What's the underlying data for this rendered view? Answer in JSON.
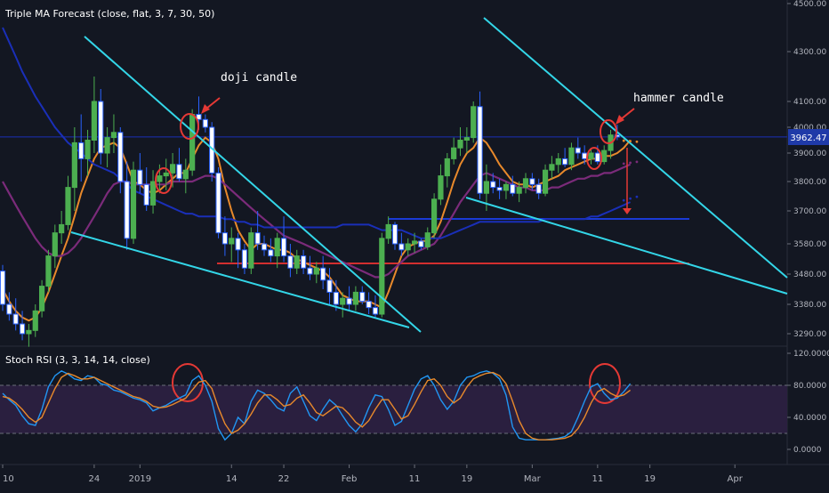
{
  "colors": {
    "background": "#131722",
    "text": "#b2b5be",
    "grid": "#1e2230",
    "candle_up": "#4caf50",
    "candle_down": "#ffffff",
    "candle_down_border": "#2962ff",
    "ma_fast": "#e8892b",
    "ma_mid": "#7b2b7a",
    "ma_slow": "#1a2fb8",
    "trendline": "#33d6e8",
    "circle": "#e53935",
    "hline_blue": "#1a3ad6",
    "hline_red": "#d32f2f",
    "rsi_k": "#2196f3",
    "rsi_d": "#e8892b",
    "rsi_band": "#2a1f3f",
    "price_label_bg": "#1f3aa8"
  },
  "main_legend": "Triple MA Forecast (close, flat, 3, 7, 30, 50)",
  "rsi_legend": "Stoch RSI (3, 3, 14, 14, close)",
  "annotations": {
    "doji": "doji candle",
    "hammer": "hammer candle"
  },
  "last_price_label": "3962.47",
  "chart_data": [
    {
      "type": "candlestick",
      "title": "",
      "y_axis_ticks": [
        "4500.00",
        "4300.00",
        "4100.00",
        "4000.00",
        "3900.00",
        "3800.00",
        "3700.00",
        "3580.00",
        "3480.00",
        "3380.00",
        "3290.00"
      ],
      "y_axis_tick_values": [
        4500,
        4300,
        4100,
        4000,
        3900,
        3800,
        3700,
        3580,
        3480,
        3380,
        3290
      ],
      "x_axis_ticks": [
        "10",
        "24",
        "2019",
        "14",
        "22",
        "Feb",
        "11",
        "19",
        "Mar",
        "11",
        "19",
        "Apr"
      ],
      "x_axis_tick_indices": [
        0,
        14,
        21,
        35,
        43,
        53,
        63,
        71,
        81,
        91,
        99,
        112
      ],
      "last_price": 3962.47,
      "candles_ohlc": [
        [
          3490,
          3510,
          3360,
          3380
        ],
        [
          3380,
          3420,
          3330,
          3350
        ],
        [
          3350,
          3400,
          3300,
          3320
        ],
        [
          3320,
          3360,
          3270,
          3290
        ],
        [
          3290,
          3320,
          3250,
          3300
        ],
        [
          3300,
          3380,
          3280,
          3360
        ],
        [
          3360,
          3460,
          3340,
          3440
        ],
        [
          3440,
          3560,
          3420,
          3540
        ],
        [
          3540,
          3650,
          3500,
          3620
        ],
        [
          3620,
          3700,
          3580,
          3650
        ],
        [
          3650,
          3820,
          3630,
          3780
        ],
        [
          3780,
          4000,
          3700,
          3940
        ],
        [
          3940,
          4050,
          3800,
          3880
        ],
        [
          3880,
          3990,
          3820,
          3950
        ],
        [
          3950,
          4200,
          3900,
          4100
        ],
        [
          4100,
          4150,
          3860,
          3900
        ],
        [
          3900,
          4000,
          3850,
          3960
        ],
        [
          3960,
          4050,
          3900,
          3980
        ],
        [
          3980,
          4000,
          3760,
          3800
        ],
        [
          3800,
          3870,
          3560,
          3600
        ],
        [
          3600,
          3870,
          3580,
          3840
        ],
        [
          3840,
          3900,
          3760,
          3790
        ],
        [
          3790,
          3850,
          3700,
          3720
        ],
        [
          3720,
          3840,
          3690,
          3800
        ],
        [
          3800,
          3860,
          3760,
          3820
        ],
        [
          3820,
          3880,
          3770,
          3830
        ],
        [
          3830,
          3900,
          3780,
          3860
        ],
        [
          3860,
          3920,
          3800,
          3810
        ],
        [
          3810,
          3880,
          3760,
          3840
        ],
        [
          3840,
          4070,
          3820,
          4050
        ],
        [
          4050,
          4120,
          3990,
          4030
        ],
        [
          4030,
          4050,
          3980,
          4000
        ],
        [
          4000,
          4020,
          3800,
          3830
        ],
        [
          3830,
          3850,
          3600,
          3620
        ],
        [
          3620,
          3680,
          3540,
          3580
        ],
        [
          3580,
          3640,
          3520,
          3600
        ],
        [
          3600,
          3620,
          3500,
          3560
        ],
        [
          3560,
          3580,
          3480,
          3500
        ],
        [
          3500,
          3640,
          3480,
          3620
        ],
        [
          3620,
          3700,
          3560,
          3580
        ],
        [
          3580,
          3610,
          3540,
          3560
        ],
        [
          3560,
          3600,
          3520,
          3540
        ],
        [
          3540,
          3620,
          3500,
          3600
        ],
        [
          3600,
          3680,
          3520,
          3540
        ],
        [
          3540,
          3580,
          3470,
          3500
        ],
        [
          3500,
          3560,
          3480,
          3540
        ],
        [
          3540,
          3560,
          3480,
          3500
        ],
        [
          3500,
          3540,
          3460,
          3480
        ],
        [
          3480,
          3520,
          3450,
          3500
        ],
        [
          3500,
          3540,
          3430,
          3460
        ],
        [
          3460,
          3500,
          3380,
          3420
        ],
        [
          3420,
          3460,
          3360,
          3380
        ],
        [
          3380,
          3420,
          3340,
          3400
        ],
        [
          3400,
          3440,
          3360,
          3380
        ],
        [
          3380,
          3440,
          3360,
          3420
        ],
        [
          3420,
          3440,
          3380,
          3390
        ],
        [
          3390,
          3420,
          3350,
          3370
        ],
        [
          3370,
          3410,
          3340,
          3350
        ],
        [
          3350,
          3620,
          3340,
          3600
        ],
        [
          3600,
          3680,
          3580,
          3650
        ],
        [
          3650,
          3660,
          3560,
          3580
        ],
        [
          3580,
          3620,
          3540,
          3560
        ],
        [
          3560,
          3600,
          3540,
          3580
        ],
        [
          3580,
          3620,
          3550,
          3590
        ],
        [
          3590,
          3600,
          3560,
          3570
        ],
        [
          3570,
          3640,
          3560,
          3620
        ],
        [
          3620,
          3760,
          3600,
          3740
        ],
        [
          3740,
          3860,
          3720,
          3820
        ],
        [
          3820,
          3900,
          3780,
          3880
        ],
        [
          3880,
          3960,
          3860,
          3920
        ],
        [
          3920,
          4000,
          3890,
          3950
        ],
        [
          3950,
          4000,
          3900,
          3960
        ],
        [
          3960,
          4100,
          3940,
          4080
        ],
        [
          4080,
          4140,
          3740,
          3760
        ],
        [
          3760,
          3860,
          3700,
          3800
        ],
        [
          3800,
          3830,
          3760,
          3780
        ],
        [
          3780,
          3810,
          3740,
          3770
        ],
        [
          3770,
          3800,
          3740,
          3790
        ],
        [
          3790,
          3820,
          3750,
          3760
        ],
        [
          3760,
          3800,
          3730,
          3780
        ],
        [
          3780,
          3830,
          3760,
          3810
        ],
        [
          3810,
          3830,
          3770,
          3790
        ],
        [
          3790,
          3810,
          3740,
          3760
        ],
        [
          3760,
          3860,
          3750,
          3840
        ],
        [
          3840,
          3890,
          3810,
          3860
        ],
        [
          3860,
          3900,
          3830,
          3880
        ],
        [
          3880,
          3920,
          3850,
          3860
        ],
        [
          3860,
          3940,
          3840,
          3920
        ],
        [
          3920,
          3960,
          3880,
          3900
        ],
        [
          3900,
          3930,
          3860,
          3880
        ],
        [
          3880,
          3920,
          3860,
          3900
        ],
        [
          3900,
          3930,
          3860,
          3870
        ],
        [
          3870,
          3930,
          3860,
          3910
        ],
        [
          3910,
          3990,
          3880,
          3970
        ],
        [
          3970,
          4010,
          3950,
          3962.47
        ]
      ],
      "series": [
        {
          "name": "",
          "color_key": "ma_fast",
          "values": [
            3430,
            3390,
            3360,
            3340,
            3330,
            3340,
            3370,
            3420,
            3480,
            3540,
            3600,
            3680,
            3760,
            3820,
            3880,
            3920,
            3930,
            3940,
            3920,
            3860,
            3800,
            3790,
            3770,
            3760,
            3770,
            3790,
            3810,
            3830,
            3830,
            3880,
            3930,
            3960,
            3940,
            3880,
            3780,
            3700,
            3630,
            3590,
            3560,
            3580,
            3580,
            3570,
            3560,
            3560,
            3550,
            3530,
            3520,
            3510,
            3500,
            3490,
            3470,
            3440,
            3410,
            3400,
            3390,
            3390,
            3390,
            3380,
            3370,
            3420,
            3480,
            3540,
            3570,
            3580,
            3590,
            3590,
            3610,
            3660,
            3730,
            3800,
            3860,
            3900,
            3920,
            3960,
            3940,
            3900,
            3860,
            3830,
            3800,
            3790,
            3790,
            3780,
            3790,
            3800,
            3810,
            3820,
            3840,
            3850,
            3860,
            3870,
            3880,
            3880,
            3890,
            3890,
            3900,
            3920,
            3950
          ]
        },
        {
          "name": "",
          "color_key": "ma_mid",
          "values": [
            3800,
            3760,
            3720,
            3680,
            3640,
            3600,
            3570,
            3550,
            3540,
            3540,
            3550,
            3570,
            3600,
            3640,
            3680,
            3720,
            3760,
            3790,
            3800,
            3800,
            3790,
            3790,
            3790,
            3790,
            3790,
            3790,
            3800,
            3800,
            3800,
            3800,
            3810,
            3820,
            3820,
            3810,
            3790,
            3770,
            3750,
            3730,
            3710,
            3690,
            3670,
            3650,
            3630,
            3610,
            3600,
            3590,
            3580,
            3570,
            3560,
            3550,
            3540,
            3530,
            3520,
            3510,
            3500,
            3490,
            3480,
            3470,
            3470,
            3480,
            3500,
            3520,
            3540,
            3550,
            3560,
            3570,
            3580,
            3610,
            3650,
            3690,
            3730,
            3760,
            3790,
            3820,
            3830,
            3820,
            3810,
            3800,
            3790,
            3780,
            3780,
            3770,
            3770,
            3770,
            3780,
            3780,
            3790,
            3800,
            3810,
            3810,
            3820,
            3820,
            3830,
            3830,
            3840,
            3850,
            3860
          ]
        },
        {
          "name": "",
          "color_key": "ma_slow",
          "values": [
            4400,
            4340,
            4280,
            4220,
            4170,
            4120,
            4080,
            4040,
            4000,
            3970,
            3940,
            3920,
            3900,
            3880,
            3860,
            3850,
            3840,
            3830,
            3810,
            3790,
            3770,
            3760,
            3750,
            3740,
            3730,
            3720,
            3710,
            3700,
            3690,
            3690,
            3680,
            3680,
            3680,
            3680,
            3670,
            3670,
            3660,
            3660,
            3650,
            3650,
            3640,
            3640,
            3640,
            3640,
            3640,
            3640,
            3640,
            3640,
            3640,
            3640,
            3640,
            3640,
            3650,
            3650,
            3650,
            3650,
            3650,
            3640,
            3630,
            3630,
            3630,
            3630,
            3620,
            3610,
            3600,
            3600,
            3600,
            3600,
            3610,
            3620,
            3630,
            3640,
            3650,
            3660,
            3660,
            3660,
            3660,
            3660,
            3660,
            3660,
            3660,
            3660,
            3660,
            3670,
            3670,
            3670,
            3670,
            3670,
            3670,
            3670,
            3680,
            3680,
            3690,
            3700,
            3710,
            3720,
            3730
          ]
        },
        {
          "name": "",
          "color_key": "rsi_k",
          "values": [
            70,
            62,
            55,
            42,
            32,
            30,
            50,
            78,
            92,
            98,
            94,
            88,
            86,
            92,
            90,
            82,
            80,
            74,
            72,
            68,
            64,
            62,
            58,
            48,
            52,
            55,
            60,
            64,
            68,
            86,
            92,
            80,
            60,
            26,
            12,
            20,
            40,
            32,
            60,
            74,
            70,
            62,
            52,
            48,
            70,
            78,
            60,
            42,
            36,
            50,
            62,
            55,
            42,
            30,
            22,
            32,
            52,
            68,
            66,
            50,
            30,
            35,
            55,
            75,
            88,
            92,
            80,
            62,
            50,
            60,
            80,
            90,
            92,
            96,
            98,
            95,
            88,
            68,
            28,
            14,
            12,
            12,
            12,
            12,
            13,
            14,
            16,
            22,
            40,
            60,
            78,
            82,
            70,
            62,
            64,
            72,
            82
          ]
        },
        {
          "name": "",
          "color_key": "rsi_d",
          "values": [
            66,
            64,
            58,
            50,
            40,
            34,
            40,
            58,
            76,
            90,
            95,
            92,
            88,
            88,
            90,
            86,
            82,
            78,
            74,
            70,
            66,
            64,
            60,
            54,
            52,
            53,
            56,
            60,
            64,
            74,
            84,
            86,
            76,
            52,
            32,
            20,
            24,
            32,
            44,
            58,
            68,
            68,
            62,
            54,
            56,
            64,
            68,
            58,
            46,
            42,
            48,
            54,
            52,
            44,
            34,
            28,
            36,
            50,
            62,
            62,
            50,
            38,
            42,
            56,
            72,
            86,
            88,
            80,
            66,
            58,
            64,
            78,
            88,
            92,
            95,
            96,
            92,
            82,
            60,
            36,
            20,
            14,
            12,
            12,
            12,
            13,
            14,
            17,
            26,
            40,
            58,
            72,
            76,
            70,
            66,
            68,
            74
          ]
        }
      ]
    },
    {
      "type": "line",
      "title": "",
      "y_axis_ticks": [
        "120.0000",
        "80.0000",
        "40.0000",
        "0.0000"
      ],
      "y_axis_tick_values": [
        120,
        80,
        40,
        0
      ],
      "band": [
        20,
        80
      ],
      "series_ref": "rsi"
    }
  ]
}
